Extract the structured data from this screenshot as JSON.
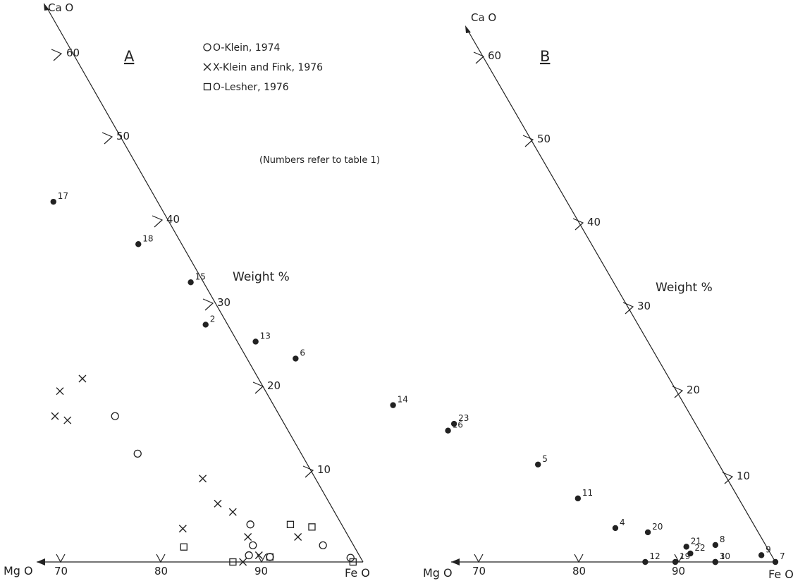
{
  "chart_data": [
    {
      "type": "scatter",
      "panel_label": "A",
      "axes": {
        "vertical": "CaO",
        "horizontal_left": "MgO",
        "corner_right": "FeO",
        "vertical_ticks": [
          "60",
          "50",
          "40",
          "30",
          "20",
          "10"
        ],
        "horizontal_ticks": [
          "70",
          "80",
          "90"
        ]
      },
      "unit_label": "Weight %",
      "legend": [
        {
          "symbol": "circle",
          "label": "O-Klein, 1974"
        },
        {
          "symbol": "cross",
          "label": "X-Klein and Fink, 1976"
        },
        {
          "symbol": "square",
          "label": "O-Lesher, 1976"
        }
      ],
      "series": [
        {
          "name": "Klein, 1974",
          "symbol": "circle",
          "points": [
            {
              "MgO": 84,
              "CaO": 17.5
            },
            {
              "MgO": 84,
              "CaO": 13.0
            },
            {
              "MgO": 91,
              "CaO": 4.5
            },
            {
              "MgO": 90,
              "CaO": 2.0
            },
            {
              "MgO": 89,
              "CaO": 0.8
            },
            {
              "MgO": 91,
              "CaO": 0.6
            },
            {
              "MgO": 97,
              "CaO": 2.0
            },
            {
              "MgO": 99,
              "CaO": 0.5
            }
          ]
        },
        {
          "name": "Klein and Fink, 1976",
          "symbol": "cross",
          "points": [
            {
              "MgO": 73,
              "CaO": 26.0
            },
            {
              "MgO": 80,
              "CaO": 20.5
            },
            {
              "MgO": 83,
              "CaO": 22.0
            },
            {
              "MgO": 78,
              "CaO": 17.5
            },
            {
              "MgO": 79,
              "CaO": 17.0
            },
            {
              "MgO": 89,
              "CaO": 10.0
            },
            {
              "MgO": 89,
              "CaO": 7.0
            },
            {
              "MgO": 90,
              "CaO": 6.0
            },
            {
              "MgO": 84,
              "CaO": 4.0
            },
            {
              "MgO": 90,
              "CaO": 3.0
            },
            {
              "MgO": 88,
              "CaO": 0.0
            },
            {
              "MgO": 90,
              "CaO": 0.8
            },
            {
              "MgO": 95,
              "CaO": 3.0
            }
          ]
        },
        {
          "name": "Lesher, 1976",
          "symbol": "square",
          "points": [
            {
              "MgO": 83,
              "CaO": 1.8
            },
            {
              "MgO": 87,
              "CaO": 0.0
            },
            {
              "MgO": 91,
              "CaO": 0.6
            },
            {
              "MgO": 95,
              "CaO": 4.5
            },
            {
              "MgO": 97,
              "CaO": 4.2
            },
            {
              "MgO": 99,
              "CaO": 0.0
            }
          ]
        }
      ]
    },
    {
      "type": "scatter",
      "panel_label": "B",
      "axes": {
        "vertical": "CaO",
        "horizontal_left": "MgO",
        "corner_right": "FeO",
        "vertical_ticks": [
          "60",
          "50",
          "40",
          "30",
          "20",
          "10"
        ],
        "horizontal_ticks": [
          "70",
          "80",
          "90"
        ]
      },
      "unit_label": "Weight %",
      "note": "(Numbers refer to table 1)",
      "points": [
        {
          "label": "17",
          "MgO": 49,
          "CaO": 42.5
        },
        {
          "label": "18",
          "MgO": 55,
          "CaO": 37.5
        },
        {
          "label": "15",
          "MgO": 58,
          "CaO": 33.0
        },
        {
          "label": "2",
          "MgO": 57,
          "CaO": 28.0
        },
        {
          "label": "13",
          "MgO": 61,
          "CaO": 26.0
        },
        {
          "label": "6",
          "MgO": 64,
          "CaO": 24.0
        },
        {
          "label": "14",
          "MgO": 71,
          "CaO": 18.5
        },
        {
          "label": "16",
          "MgO": 75,
          "CaO": 15.5
        },
        {
          "label": "23",
          "MgO": 76,
          "CaO": 16.3
        },
        {
          "label": "5",
          "MgO": 82,
          "CaO": 11.5
        },
        {
          "label": "11",
          "MgO": 84,
          "CaO": 7.5
        },
        {
          "label": "4",
          "MgO": 86,
          "CaO": 4.0
        },
        {
          "label": "20",
          "MgO": 89,
          "CaO": 3.5
        },
        {
          "label": "21",
          "MgO": 92,
          "CaO": 1.8
        },
        {
          "label": "22",
          "MgO": 92,
          "CaO": 1.0
        },
        {
          "label": "12",
          "MgO": 87,
          "CaO": 0.0
        },
        {
          "label": "19",
          "MgO": 90,
          "CaO": 0.0
        },
        {
          "label": "3",
          "MgO": 94,
          "CaO": 0.0
        },
        {
          "label": "10",
          "MgO": 94,
          "CaO": 0.0
        },
        {
          "label": "8",
          "MgO": 95,
          "CaO": 2.0
        },
        {
          "label": "9",
          "MgO": 99,
          "CaO": 0.8
        },
        {
          "label": "7",
          "MgO": 100,
          "CaO": 0.0
        }
      ]
    }
  ],
  "panel_a": {
    "title": "A",
    "ca_label": "Ca O",
    "mg_label": "Mg O",
    "fe_label": "Fe O",
    "unit_label": "Weight %",
    "ticks_ca": [
      "60",
      "50",
      "40",
      "30",
      "20",
      "10"
    ],
    "ticks_mg": [
      "70",
      "80",
      "90"
    ],
    "legend": [
      "O-Klein, 1974",
      "X-Klein and Fink, 1976",
      "O-Lesher, 1976"
    ]
  },
  "panel_b": {
    "title": "B",
    "ca_label": "Ca O",
    "mg_label": "Mg O",
    "fe_label": "Fe O",
    "unit_label": "Weight %",
    "note": "(Numbers refer to table 1)",
    "ticks_ca": [
      "60",
      "50",
      "40",
      "30",
      "20",
      "10"
    ],
    "ticks_mg": [
      "70",
      "80",
      "90"
    ]
  },
  "colors": {
    "ink": "#222222",
    "background": "#ffffff"
  }
}
